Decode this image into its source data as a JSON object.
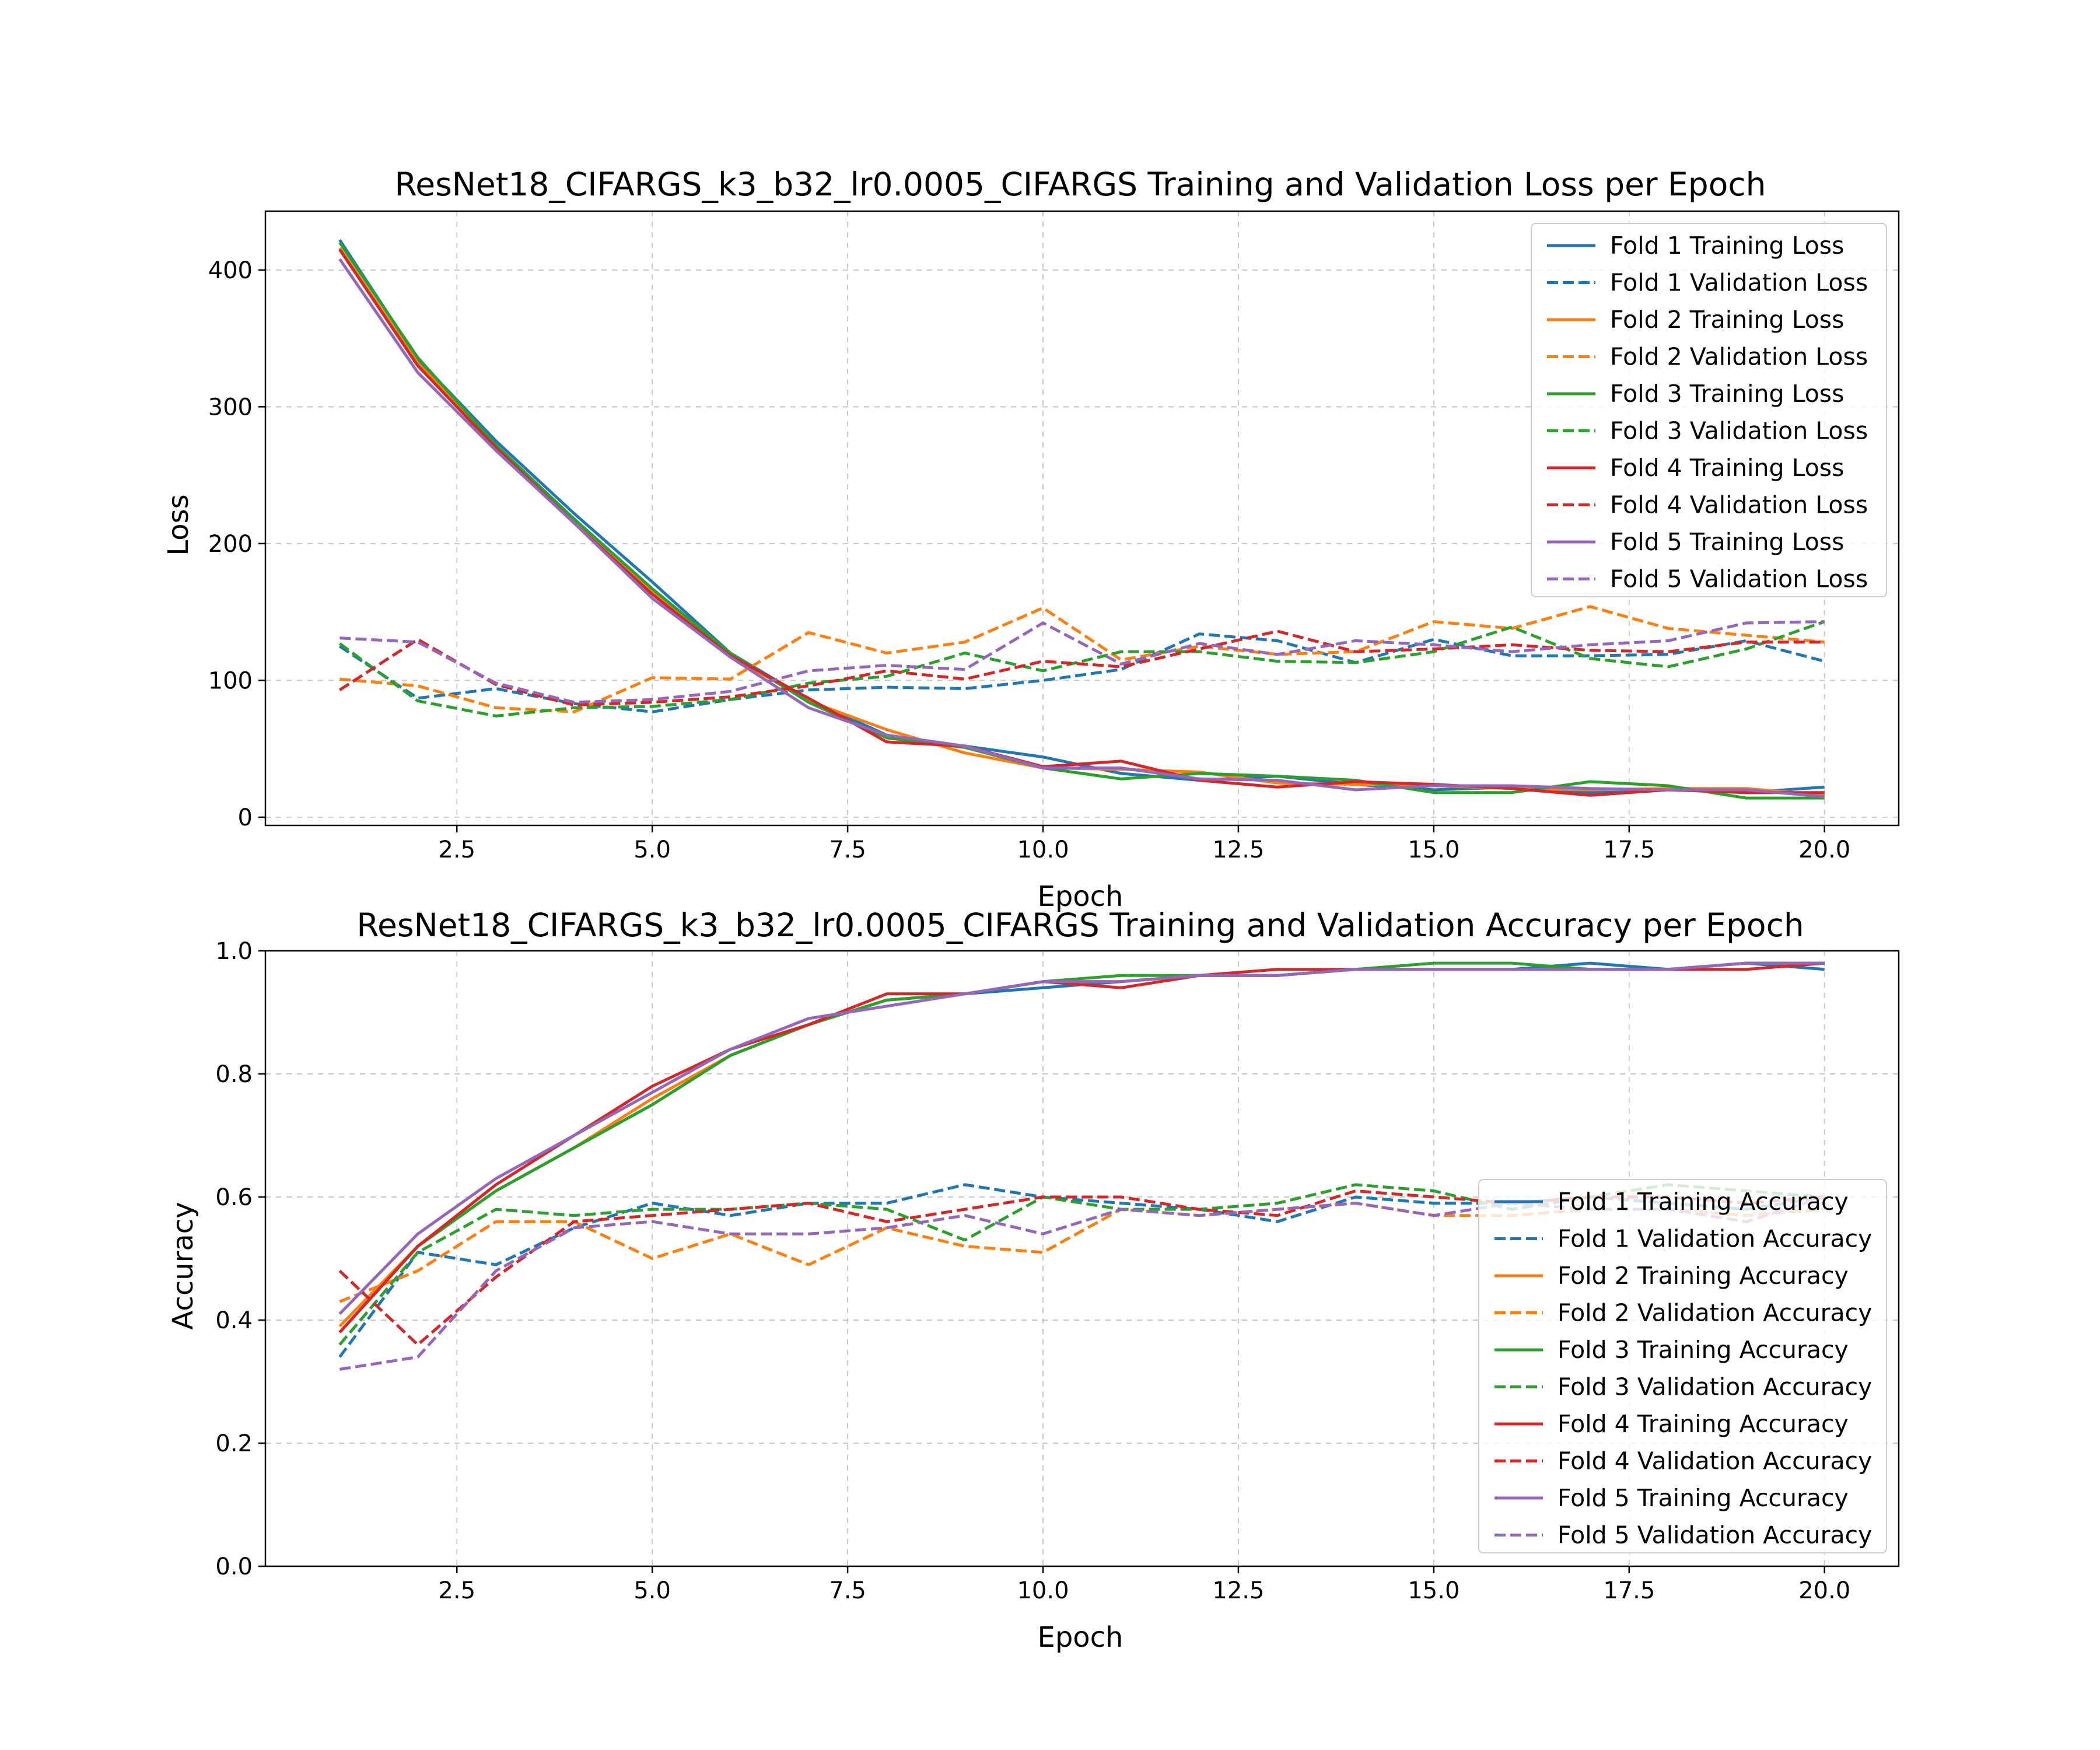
{
  "colors": [
    "#1f77b4",
    "#ff7f0e",
    "#2ca02c",
    "#d62728",
    "#9467bd"
  ],
  "chart_data": [
    {
      "type": "line",
      "title": "ResNet18_CIFARGS_k3_b32_lr0.0005_CIFARGS Training and Validation Loss per Epoch",
      "xlabel": "Epoch",
      "ylabel": "Loss",
      "xlim": [
        0.05,
        20.95
      ],
      "ylim": [
        -6,
        443
      ],
      "xticks": [
        2.5,
        5.0,
        7.5,
        10.0,
        12.5,
        15.0,
        17.5,
        20.0
      ],
      "xtick_labels": [
        "2.5",
        "5.0",
        "7.5",
        "10.0",
        "12.5",
        "15.0",
        "17.5",
        "20.0"
      ],
      "yticks": [
        0,
        100,
        200,
        300,
        400
      ],
      "ytick_labels": [
        "0",
        "100",
        "200",
        "300",
        "400"
      ],
      "grid": true,
      "legend": "top-right",
      "x": [
        1,
        2,
        3,
        4,
        5,
        6,
        7,
        8,
        9,
        10,
        11,
        12,
        13,
        14,
        15,
        16,
        17,
        18,
        19,
        20
      ],
      "series": [
        {
          "name": "Fold 1 Training Loss",
          "style": "solid",
          "values": [
            422,
            335,
            275,
            222,
            172,
            120,
            86,
            60,
            52,
            44,
            32,
            27,
            30,
            24,
            20,
            22,
            18,
            20,
            18,
            22
          ]
        },
        {
          "name": "Fold 1 Validation Loss",
          "style": "dashed",
          "values": [
            125,
            87,
            94,
            83,
            77,
            86,
            93,
            95,
            94,
            100,
            108,
            134,
            129,
            113,
            130,
            118,
            118,
            119,
            129,
            114
          ]
        },
        {
          "name": "Fold 2 Training Loss",
          "style": "solid",
          "values": [
            416,
            332,
            272,
            218,
            165,
            118,
            85,
            64,
            47,
            36,
            35,
            33,
            25,
            24,
            23,
            21,
            20,
            21,
            21,
            16
          ]
        },
        {
          "name": "Fold 2 Validation Loss",
          "style": "dashed",
          "values": [
            101,
            96,
            80,
            77,
            102,
            101,
            135,
            120,
            128,
            153,
            115,
            125,
            119,
            121,
            143,
            138,
            154,
            138,
            133,
            128
          ]
        },
        {
          "name": "Fold 3 Training Loss",
          "style": "solid",
          "values": [
            420,
            336,
            272,
            218,
            167,
            120,
            84,
            58,
            51,
            36,
            28,
            32,
            30,
            27,
            18,
            18,
            26,
            23,
            14,
            14
          ]
        },
        {
          "name": "Fold 3 Validation Loss",
          "style": "dashed",
          "values": [
            127,
            85,
            74,
            80,
            81,
            86,
            98,
            103,
            120,
            107,
            121,
            121,
            114,
            113,
            121,
            139,
            116,
            110,
            123,
            143
          ]
        },
        {
          "name": "Fold 4 Training Loss",
          "style": "solid",
          "values": [
            415,
            330,
            270,
            215,
            163,
            118,
            87,
            55,
            52,
            37,
            41,
            27,
            22,
            26,
            24,
            21,
            16,
            20,
            18,
            18
          ]
        },
        {
          "name": "Fold 4 Validation Loss",
          "style": "dashed",
          "values": [
            93,
            130,
            97,
            82,
            84,
            88,
            96,
            107,
            101,
            114,
            110,
            123,
            136,
            121,
            123,
            126,
            122,
            121,
            128,
            128
          ]
        },
        {
          "name": "Fold 5 Training Loss",
          "style": "solid",
          "values": [
            408,
            325,
            268,
            215,
            160,
            117,
            80,
            60,
            52,
            36,
            36,
            28,
            27,
            20,
            23,
            23,
            21,
            20,
            20,
            15
          ]
        },
        {
          "name": "Fold 5 Validation Loss",
          "style": "dashed",
          "values": [
            131,
            128,
            98,
            84,
            86,
            92,
            107,
            111,
            108,
            142,
            112,
            127,
            119,
            129,
            126,
            121,
            126,
            129,
            142,
            143
          ]
        }
      ]
    },
    {
      "type": "line",
      "title": "ResNet18_CIFARGS_k3_b32_lr0.0005_CIFARGS Training and Validation Accuracy per Epoch",
      "xlabel": "Epoch",
      "ylabel": "Accuracy",
      "xlim": [
        0.05,
        20.95
      ],
      "ylim": [
        0.0,
        1.0
      ],
      "xticks": [
        2.5,
        5.0,
        7.5,
        10.0,
        12.5,
        15.0,
        17.5,
        20.0
      ],
      "xtick_labels": [
        "2.5",
        "5.0",
        "7.5",
        "10.0",
        "12.5",
        "15.0",
        "17.5",
        "20.0"
      ],
      "yticks": [
        0.0,
        0.2,
        0.4,
        0.6,
        0.8,
        1.0
      ],
      "ytick_labels": [
        "0.0",
        "0.2",
        "0.4",
        "0.6",
        "0.8",
        "1.0"
      ],
      "grid": true,
      "legend": "lower-right",
      "x": [
        1,
        2,
        3,
        4,
        5,
        6,
        7,
        8,
        9,
        10,
        11,
        12,
        13,
        14,
        15,
        16,
        17,
        18,
        19,
        20
      ],
      "series": [
        {
          "name": "Fold 1 Training Accuracy",
          "style": "solid",
          "values": [
            0.38,
            0.52,
            0.61,
            0.68,
            0.75,
            0.83,
            0.88,
            0.92,
            0.93,
            0.94,
            0.95,
            0.96,
            0.96,
            0.97,
            0.97,
            0.97,
            0.98,
            0.97,
            0.98,
            0.97
          ]
        },
        {
          "name": "Fold 1 Validation Accuracy",
          "style": "dashed",
          "values": [
            0.34,
            0.51,
            0.49,
            0.55,
            0.59,
            0.57,
            0.59,
            0.59,
            0.62,
            0.6,
            0.59,
            0.58,
            0.56,
            0.6,
            0.59,
            0.59,
            0.6,
            0.59,
            0.58,
            0.6
          ]
        },
        {
          "name": "Fold 2 Training Accuracy",
          "style": "solid",
          "values": [
            0.39,
            0.52,
            0.61,
            0.68,
            0.76,
            0.83,
            0.88,
            0.92,
            0.93,
            0.95,
            0.95,
            0.96,
            0.96,
            0.97,
            0.97,
            0.97,
            0.97,
            0.97,
            0.98,
            0.98
          ]
        },
        {
          "name": "Fold 2 Validation Accuracy",
          "style": "dashed",
          "values": [
            0.43,
            0.48,
            0.56,
            0.56,
            0.5,
            0.54,
            0.49,
            0.55,
            0.52,
            0.51,
            0.58,
            0.57,
            0.58,
            0.59,
            0.57,
            0.57,
            0.58,
            0.58,
            0.57,
            0.58
          ]
        },
        {
          "name": "Fold 3 Training Accuracy",
          "style": "solid",
          "values": [
            0.38,
            0.52,
            0.61,
            0.68,
            0.75,
            0.83,
            0.88,
            0.92,
            0.93,
            0.95,
            0.96,
            0.96,
            0.96,
            0.97,
            0.98,
            0.98,
            0.97,
            0.97,
            0.98,
            0.98
          ]
        },
        {
          "name": "Fold 3 Validation Accuracy",
          "style": "dashed",
          "values": [
            0.36,
            0.51,
            0.58,
            0.57,
            0.58,
            0.58,
            0.59,
            0.58,
            0.53,
            0.6,
            0.58,
            0.58,
            0.59,
            0.62,
            0.61,
            0.58,
            0.6,
            0.62,
            0.61,
            0.6
          ]
        },
        {
          "name": "Fold 4 Training Accuracy",
          "style": "solid",
          "values": [
            0.38,
            0.52,
            0.62,
            0.7,
            0.78,
            0.84,
            0.88,
            0.93,
            0.93,
            0.95,
            0.94,
            0.96,
            0.97,
            0.97,
            0.97,
            0.97,
            0.97,
            0.97,
            0.97,
            0.98
          ]
        },
        {
          "name": "Fold 4 Validation Accuracy",
          "style": "dashed",
          "values": [
            0.48,
            0.36,
            0.47,
            0.56,
            0.57,
            0.58,
            0.59,
            0.56,
            0.58,
            0.6,
            0.6,
            0.58,
            0.57,
            0.61,
            0.6,
            0.59,
            0.6,
            0.6,
            0.59,
            0.6
          ]
        },
        {
          "name": "Fold 5 Training Accuracy",
          "style": "solid",
          "values": [
            0.41,
            0.54,
            0.63,
            0.7,
            0.77,
            0.84,
            0.89,
            0.91,
            0.93,
            0.95,
            0.95,
            0.96,
            0.96,
            0.97,
            0.97,
            0.97,
            0.97,
            0.97,
            0.98,
            0.98
          ]
        },
        {
          "name": "Fold 5 Validation Accuracy",
          "style": "dashed",
          "values": [
            0.32,
            0.34,
            0.48,
            0.55,
            0.56,
            0.54,
            0.54,
            0.55,
            0.57,
            0.54,
            0.58,
            0.57,
            0.58,
            0.59,
            0.57,
            0.59,
            0.58,
            0.58,
            0.56,
            0.6
          ]
        }
      ]
    }
  ]
}
